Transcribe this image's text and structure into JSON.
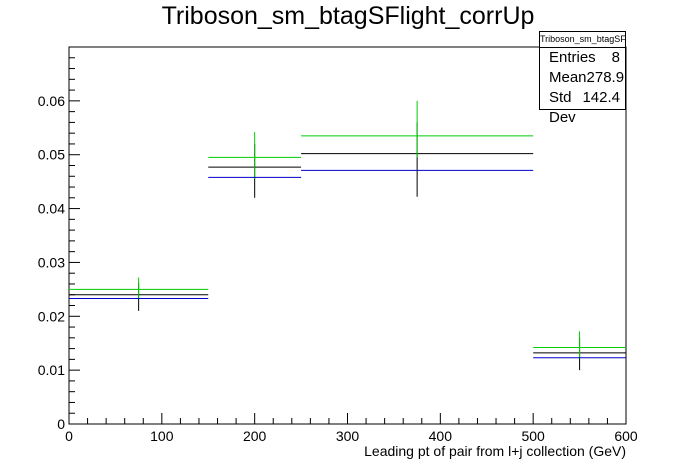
{
  "chart_data": {
    "type": "scatter",
    "title": "Triboson_sm_btagSFlight_corrUp",
    "xlabel": "Leading pt of pair from l+j collection (GeV)",
    "ylabel": "",
    "xlim": [
      0,
      600
    ],
    "ylim": [
      0,
      0.07
    ],
    "x_ticks": [
      "0",
      "100",
      "200",
      "300",
      "400",
      "500",
      "600"
    ],
    "y_ticks": [
      "0",
      "0.01",
      "0.02",
      "0.03",
      "0.04",
      "0.05",
      "0.06"
    ],
    "bins": [
      [
        0,
        150
      ],
      [
        150,
        250
      ],
      [
        250,
        500
      ],
      [
        500,
        600
      ]
    ],
    "series": [
      {
        "color": "#000000",
        "values": [
          0.024,
          0.0477,
          0.0502,
          0.0132
        ],
        "err_low": [
          0.021,
          0.042,
          0.0422,
          0.01
        ],
        "err_high": [
          0.0262,
          0.052,
          0.056,
          0.016
        ]
      },
      {
        "color": "#00cc00",
        "values": [
          0.025,
          0.0495,
          0.0535,
          0.0142
        ],
        "err_low": [
          0.0232,
          0.0455,
          0.0495,
          0.0122
        ],
        "err_high": [
          0.0272,
          0.0542,
          0.06,
          0.0172
        ]
      },
      {
        "color": "#0000cc",
        "values": [
          0.0233,
          0.0458,
          0.0471,
          0.0123
        ],
        "err_low": [
          0.0233,
          0.0458,
          0.0471,
          0.0123
        ],
        "err_high": [
          0.0233,
          0.0458,
          0.0471,
          0.0123
        ]
      }
    ],
    "stats": {
      "title": "Triboson_sm_btagSFlight_corrUp",
      "rows": [
        {
          "label": "Entries",
          "value": "8"
        },
        {
          "label": "Mean",
          "value": "278.9"
        },
        {
          "label": "Std Dev",
          "value": "142.4"
        }
      ]
    },
    "grid": false,
    "legend": "none"
  }
}
